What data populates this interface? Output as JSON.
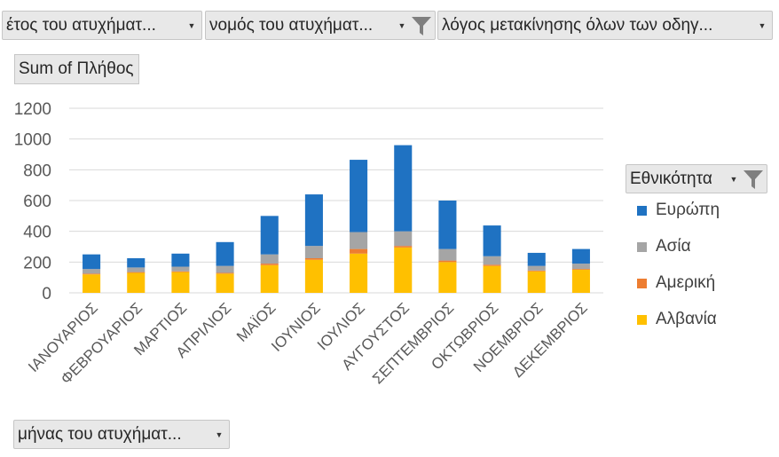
{
  "filters": {
    "year": {
      "label": "έτος του ατυχήματ...",
      "icon": "dropdown-arrow-icon"
    },
    "prefecture": {
      "label": "νομός του ατυχήματ...",
      "icon": "filter-icon"
    },
    "reason": {
      "label": "λόγος μετακίνησης όλων των οδηγ...",
      "icon": "dropdown-arrow-icon"
    }
  },
  "value_field": {
    "label": "Sum of Πλήθος"
  },
  "legend_field": {
    "label": "Εθνικότητα",
    "icon": "filter-icon"
  },
  "axis_field": {
    "label": "μήνας του ατυχήματ...",
    "icon": "dropdown-arrow-icon"
  },
  "chart_data": {
    "type": "bar",
    "stacked": true,
    "categories": [
      "ΙΑΝΟΥΑΡΙΟΣ",
      "ΦΕΒΡΟΥΑΡΙΟΣ",
      "ΜΑΡΤΙΟΣ",
      "ΑΠΡΙΛΙΟΣ",
      "ΜΑΪΟΣ",
      "ΙΟΥΝΙΟΣ",
      "ΙΟΥΛΙΟΣ",
      "ΑΥΓΟΥΣΤΟΣ",
      "ΣΕΠΤΕΜΒΡΙΟΣ",
      "ΟΚΤΩΒΡΙΟΣ",
      "ΝΟΕΜΒΡΙΟΣ",
      "ΔΕΚΕΜΒΡΙΟΣ"
    ],
    "series": [
      {
        "name": "Αλβανία",
        "color": "#FFC000",
        "values": [
          120,
          130,
          135,
          125,
          180,
          215,
          255,
          295,
          200,
          175,
          140,
          150
        ]
      },
      {
        "name": "Αμερική",
        "color": "#ED7D31",
        "values": [
          5,
          5,
          5,
          5,
          10,
          10,
          30,
          10,
          10,
          8,
          5,
          5
        ]
      },
      {
        "name": "Ασία",
        "color": "#A5A5A5",
        "values": [
          30,
          30,
          30,
          45,
          60,
          80,
          110,
          95,
          75,
          55,
          30,
          35
        ]
      },
      {
        "name": "Ευρώπη",
        "color": "#1F72C2",
        "values": [
          95,
          60,
          85,
          155,
          250,
          335,
          470,
          560,
          315,
          200,
          85,
          95
        ]
      }
    ],
    "ylim": [
      0,
      1200
    ],
    "yticks": [
      0,
      200,
      400,
      600,
      800,
      1000,
      1200
    ],
    "legend": [
      "Ευρώπη",
      "Ασία",
      "Αμερική",
      "Αλβανία"
    ],
    "legend_position": "right",
    "grid": true
  }
}
